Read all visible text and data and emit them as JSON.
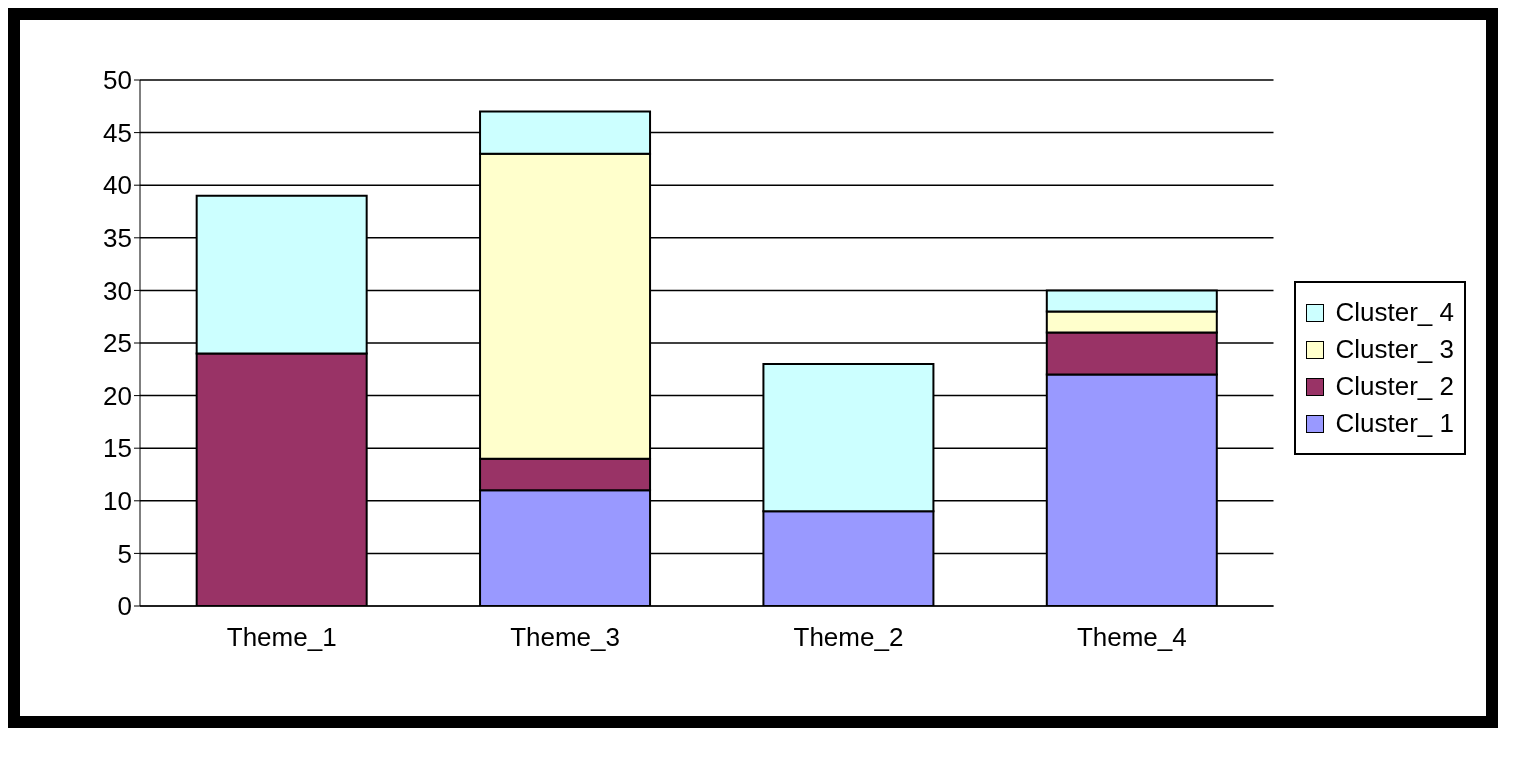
{
  "chart_data": {
    "type": "bar",
    "stacked": true,
    "categories": [
      "Theme_1",
      "Theme_3",
      "Theme_2",
      "Theme_4"
    ],
    "series": [
      {
        "name": "Cluster_ 1",
        "color": "#9999ff",
        "values": [
          0,
          11,
          9,
          22
        ]
      },
      {
        "name": "Cluster_ 2",
        "color": "#993366",
        "values": [
          24,
          3,
          0,
          4
        ]
      },
      {
        "name": "Cluster_ 3",
        "color": "#ffffcc",
        "values": [
          0,
          29,
          0,
          2
        ]
      },
      {
        "name": "Cluster_ 4",
        "color": "#ccffff",
        "values": [
          15,
          4,
          14,
          2
        ]
      }
    ],
    "ylim": [
      0,
      50
    ],
    "yticks": [
      0,
      5,
      10,
      15,
      20,
      25,
      30,
      35,
      40,
      45,
      50
    ],
    "grid": "y",
    "legend": "right"
  }
}
